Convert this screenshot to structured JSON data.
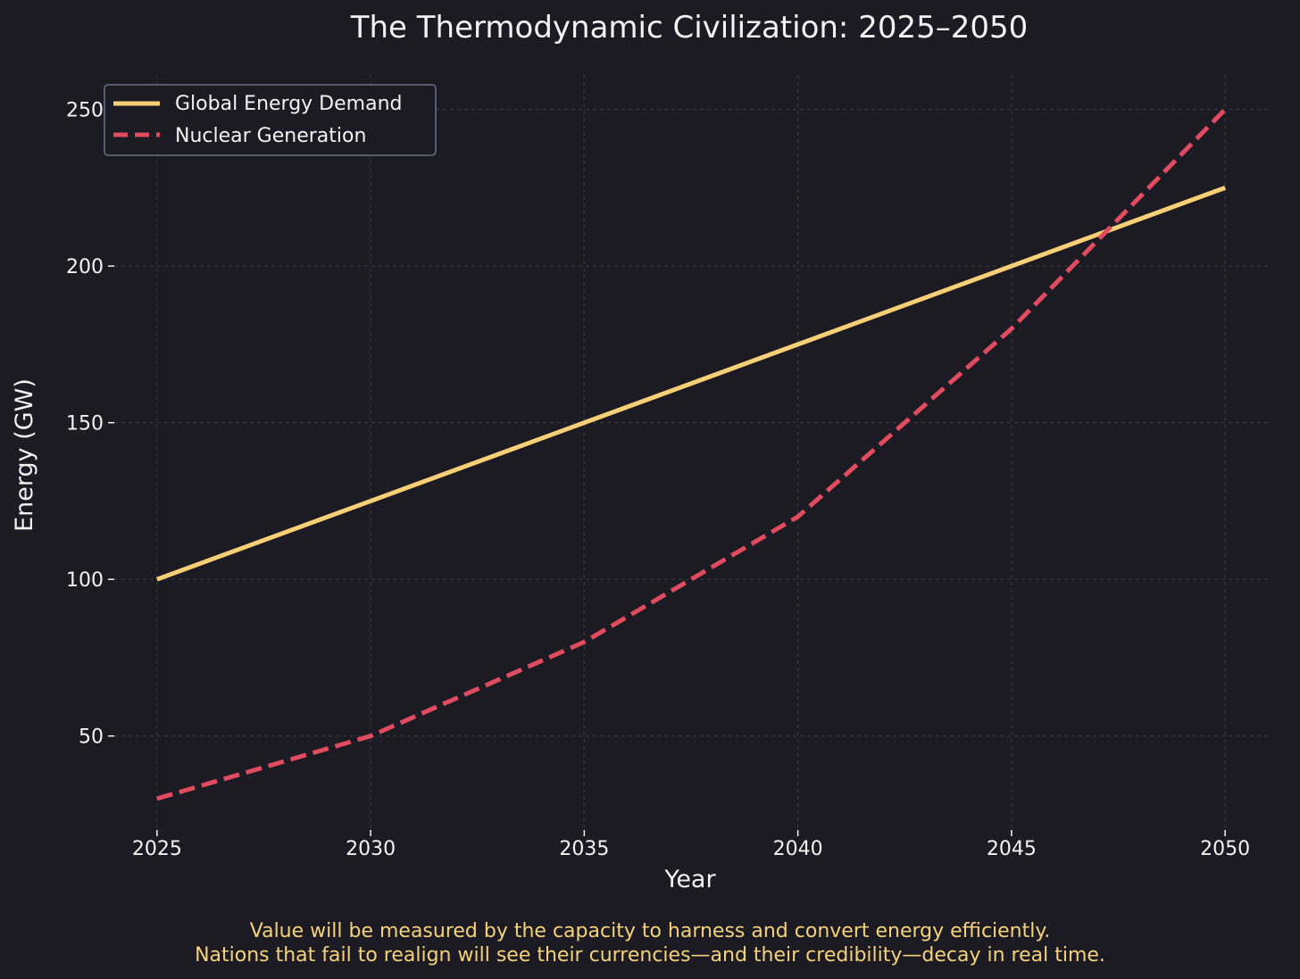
{
  "chart_data": {
    "type": "line",
    "title": "The Thermodynamic Civilization: 2025–2050",
    "xlabel": "Year",
    "ylabel": "Energy (GW)",
    "x": [
      2025,
      2030,
      2035,
      2040,
      2045,
      2050
    ],
    "xticks": [
      "2025",
      "2030",
      "2035",
      "2040",
      "2045",
      "2050"
    ],
    "yticks": [
      "50",
      "100",
      "150",
      "200",
      "250"
    ],
    "ytick_values": [
      50,
      100,
      150,
      200,
      250
    ],
    "xlim": [
      2024,
      2051
    ],
    "ylim": [
      20,
      261
    ],
    "grid": true,
    "legend_position": "top-left",
    "series": [
      {
        "name": "Global Energy Demand",
        "values": [
          100,
          125,
          150,
          175,
          200,
          225
        ],
        "color": "#f6cf76",
        "style": "solid"
      },
      {
        "name": "Nuclear Generation",
        "values": [
          30,
          50,
          80,
          120,
          180,
          250
        ],
        "color": "#e04b5f",
        "style": "dashed"
      }
    ],
    "caption_lines": [
      "Value will be measured by the capacity to harness and convert energy efficiently.",
      "Nations that fail to realign will see their currencies—and their credibility—decay in real time."
    ]
  },
  "colors": {
    "background": "#1c1a22",
    "text": "#f2f2f2",
    "caption": "#f4d27c",
    "grid": "#3a3a45",
    "legend_border": "#6c6f86"
  }
}
